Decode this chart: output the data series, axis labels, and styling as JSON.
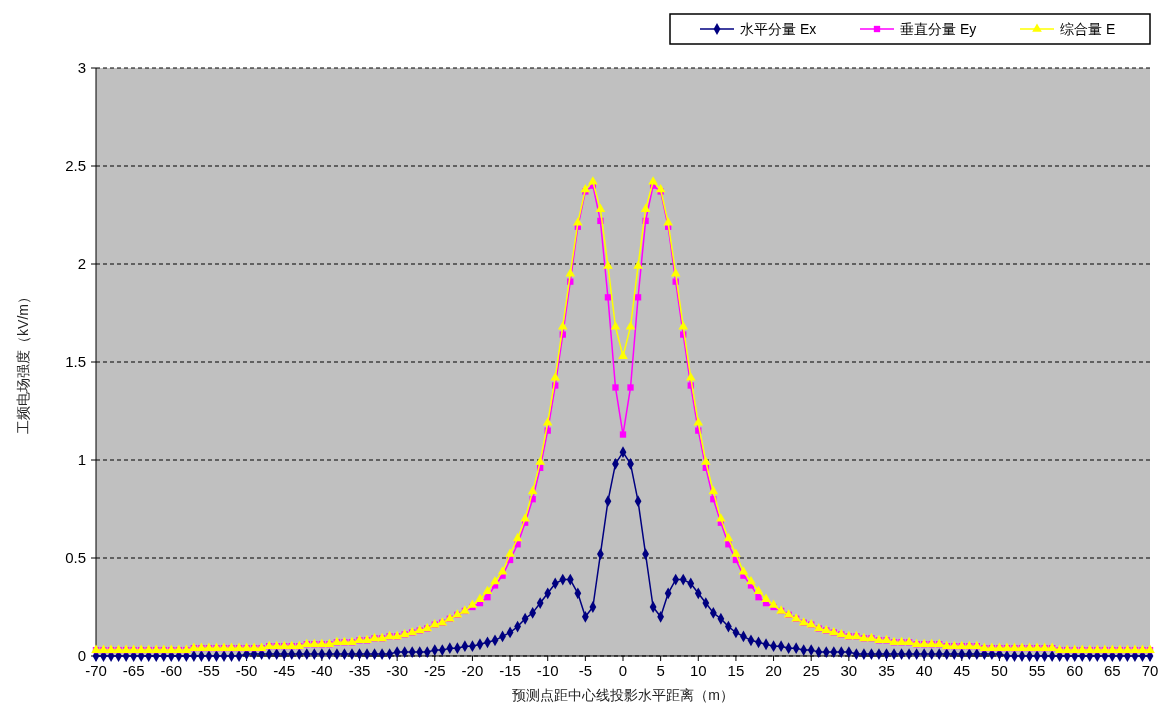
{
  "chart_data": {
    "type": "line",
    "xlabel": "预测点距中心线投影水平距离（m）",
    "ylabel": "工频电场强度（kV/m）",
    "x": [
      -70,
      -69,
      -68,
      -67,
      -66,
      -65,
      -64,
      -63,
      -62,
      -61,
      -60,
      -59,
      -58,
      -57,
      -56,
      -55,
      -54,
      -53,
      -52,
      -51,
      -50,
      -49,
      -48,
      -47,
      -46,
      -45,
      -44,
      -43,
      -42,
      -41,
      -40,
      -39,
      -38,
      -37,
      -36,
      -35,
      -34,
      -33,
      -32,
      -31,
      -30,
      -29,
      -28,
      -27,
      -26,
      -25,
      -24,
      -23,
      -22,
      -21,
      -20,
      -19,
      -18,
      -17,
      -16,
      -15,
      -14,
      -13,
      -12,
      -11,
      -10,
      -9,
      -8,
      -7,
      -6,
      -5,
      -4,
      -3,
      -2,
      -1,
      0,
      1,
      2,
      3,
      4,
      5,
      6,
      7,
      8,
      9,
      10,
      11,
      12,
      13,
      14,
      15,
      16,
      17,
      18,
      19,
      20,
      21,
      22,
      23,
      24,
      25,
      26,
      27,
      28,
      29,
      30,
      31,
      32,
      33,
      34,
      35,
      36,
      37,
      38,
      39,
      40,
      41,
      42,
      43,
      44,
      45,
      46,
      47,
      48,
      49,
      50,
      51,
      52,
      53,
      54,
      55,
      56,
      57,
      58,
      59,
      60,
      61,
      62,
      63,
      64,
      65,
      66,
      67,
      68,
      69,
      70
    ],
    "series": [
      {
        "name": "水平分量 Ex",
        "color": "#000080",
        "marker": "diamond",
        "values": [
          0,
          0,
          0,
          0,
          0,
          0,
          0,
          0,
          0,
          0,
          0,
          0,
          0,
          0,
          0,
          0,
          0,
          0,
          0,
          0,
          0.01,
          0.01,
          0.01,
          0.01,
          0.01,
          0.01,
          0.01,
          0.01,
          0.01,
          0.01,
          0.01,
          0.01,
          0.01,
          0.01,
          0.01,
          0.01,
          0.01,
          0.01,
          0.01,
          0.01,
          0.02,
          0.02,
          0.02,
          0.02,
          0.02,
          0.03,
          0.03,
          0.04,
          0.04,
          0.05,
          0.05,
          0.06,
          0.07,
          0.08,
          0.1,
          0.12,
          0.15,
          0.19,
          0.22,
          0.27,
          0.32,
          0.37,
          0.39,
          0.39,
          0.32,
          0.2,
          0.25,
          0.52,
          0.79,
          0.98,
          1.04,
          0.98,
          0.79,
          0.52,
          0.25,
          0.2,
          0.32,
          0.39,
          0.39,
          0.37,
          0.32,
          0.27,
          0.22,
          0.19,
          0.15,
          0.12,
          0.1,
          0.08,
          0.07,
          0.06,
          0.05,
          0.05,
          0.04,
          0.04,
          0.03,
          0.03,
          0.02,
          0.02,
          0.02,
          0.02,
          0.02,
          0.01,
          0.01,
          0.01,
          0.01,
          0.01,
          0.01,
          0.01,
          0.01,
          0.01,
          0.01,
          0.01,
          0.01,
          0.01,
          0.01,
          0.01,
          0.01,
          0.01,
          0.01,
          0.01,
          0.01,
          0,
          0,
          0,
          0,
          0,
          0,
          0,
          0,
          0,
          0,
          0,
          0,
          0,
          0,
          0,
          0,
          0,
          0,
          0,
          0
        ]
      },
      {
        "name": "垂直分量 Ey",
        "color": "#ff00ff",
        "marker": "square",
        "values": [
          0.03,
          0.03,
          0.03,
          0.03,
          0.03,
          0.03,
          0.03,
          0.03,
          0.03,
          0.03,
          0.03,
          0.03,
          0.03,
          0.04,
          0.04,
          0.04,
          0.04,
          0.04,
          0.04,
          0.04,
          0.04,
          0.04,
          0.04,
          0.05,
          0.05,
          0.05,
          0.05,
          0.05,
          0.06,
          0.06,
          0.06,
          0.06,
          0.07,
          0.07,
          0.07,
          0.08,
          0.08,
          0.09,
          0.09,
          0.1,
          0.1,
          0.11,
          0.12,
          0.13,
          0.14,
          0.16,
          0.17,
          0.19,
          0.21,
          0.23,
          0.25,
          0.27,
          0.3,
          0.36,
          0.41,
          0.49,
          0.57,
          0.68,
          0.8,
          0.96,
          1.15,
          1.38,
          1.64,
          1.91,
          2.19,
          2.37,
          2.4,
          2.22,
          1.83,
          1.37,
          1.13,
          1.37,
          1.83,
          2.22,
          2.4,
          2.37,
          2.19,
          1.91,
          1.64,
          1.38,
          1.15,
          0.96,
          0.8,
          0.68,
          0.57,
          0.49,
          0.41,
          0.36,
          0.3,
          0.27,
          0.25,
          0.23,
          0.21,
          0.19,
          0.17,
          0.16,
          0.14,
          0.13,
          0.12,
          0.11,
          0.1,
          0.1,
          0.09,
          0.09,
          0.08,
          0.08,
          0.07,
          0.07,
          0.07,
          0.06,
          0.06,
          0.06,
          0.06,
          0.05,
          0.05,
          0.05,
          0.05,
          0.05,
          0.04,
          0.04,
          0.04,
          0.04,
          0.04,
          0.04,
          0.04,
          0.04,
          0.04,
          0.04,
          0.03,
          0.03,
          0.03,
          0.03,
          0.03,
          0.03,
          0.03,
          0.03,
          0.03,
          0.03,
          0.03,
          0.03,
          0.03
        ]
      },
      {
        "name": "综合量 E",
        "color": "#ffff00",
        "marker": "triangle",
        "values": [
          0.03,
          0.03,
          0.03,
          0.03,
          0.03,
          0.03,
          0.03,
          0.03,
          0.03,
          0.03,
          0.03,
          0.03,
          0.03,
          0.04,
          0.04,
          0.04,
          0.04,
          0.04,
          0.04,
          0.04,
          0.04,
          0.04,
          0.04,
          0.05,
          0.05,
          0.05,
          0.05,
          0.05,
          0.06,
          0.06,
          0.06,
          0.06,
          0.07,
          0.07,
          0.07,
          0.08,
          0.08,
          0.09,
          0.09,
          0.1,
          0.1,
          0.11,
          0.12,
          0.13,
          0.14,
          0.16,
          0.17,
          0.19,
          0.21,
          0.23,
          0.26,
          0.29,
          0.33,
          0.38,
          0.43,
          0.52,
          0.6,
          0.7,
          0.84,
          0.99,
          1.19,
          1.42,
          1.68,
          1.95,
          2.21,
          2.38,
          2.42,
          2.28,
          1.99,
          1.68,
          1.53,
          1.68,
          1.99,
          2.28,
          2.42,
          2.38,
          2.21,
          1.95,
          1.68,
          1.42,
          1.19,
          0.99,
          0.84,
          0.7,
          0.6,
          0.52,
          0.43,
          0.38,
          0.33,
          0.29,
          0.26,
          0.23,
          0.21,
          0.19,
          0.17,
          0.16,
          0.14,
          0.13,
          0.12,
          0.11,
          0.1,
          0.1,
          0.09,
          0.09,
          0.08,
          0.08,
          0.07,
          0.07,
          0.07,
          0.06,
          0.06,
          0.06,
          0.06,
          0.05,
          0.05,
          0.05,
          0.05,
          0.05,
          0.04,
          0.04,
          0.04,
          0.04,
          0.04,
          0.04,
          0.04,
          0.04,
          0.04,
          0.04,
          0.03,
          0.03,
          0.03,
          0.03,
          0.03,
          0.03,
          0.03,
          0.03,
          0.03,
          0.03,
          0.03,
          0.03,
          0.03
        ]
      }
    ],
    "xlim": [
      -70,
      70
    ],
    "xticks": [
      -70,
      -65,
      -60,
      -55,
      -50,
      -45,
      -40,
      -35,
      -30,
      -25,
      -20,
      -15,
      -10,
      -5,
      0,
      5,
      10,
      15,
      20,
      25,
      30,
      35,
      40,
      45,
      50,
      55,
      60,
      65,
      70
    ],
    "ylim": [
      0,
      3
    ],
    "yticks": [
      0,
      0.5,
      1,
      1.5,
      2,
      2.5,
      3
    ],
    "grid": "y",
    "legend": "top right",
    "line_style": "solid"
  }
}
